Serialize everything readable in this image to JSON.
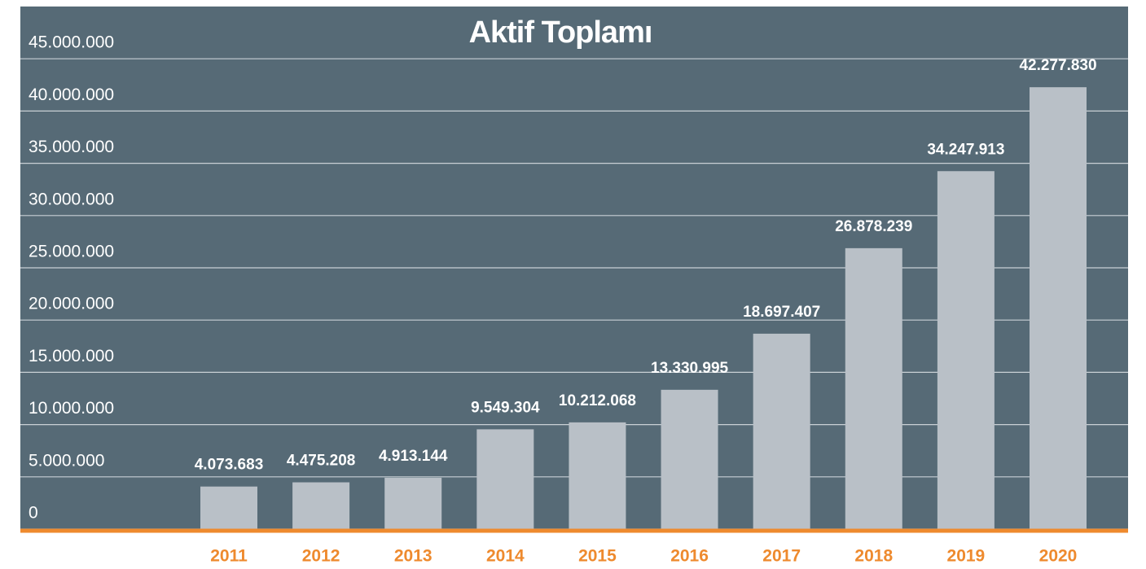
{
  "chart_data": {
    "type": "bar",
    "title": "Aktif Toplamı",
    "categories": [
      "2011",
      "2012",
      "2013",
      "2014",
      "2015",
      "2016",
      "2017",
      "2018",
      "2019",
      "2020"
    ],
    "values": [
      4073683,
      4475208,
      4913144,
      9549304,
      10212068,
      13330995,
      18697407,
      26878239,
      34247913,
      42277830
    ],
    "value_labels": [
      "4.073.683",
      "4.475.208",
      "4.913.144",
      "9.549.304",
      "10.212.068",
      "13.330.995",
      "18.697.407",
      "26.878.239",
      "34.247.913",
      "42.277.830"
    ],
    "color": "#b9c0c7",
    "ylim": [
      0,
      50000000
    ],
    "yticks": [
      0,
      {
        "value": 5000000,
        "label": "5.000.000"
      },
      {
        "value": 10000000,
        "label": "10.000.000"
      },
      {
        "value": 15000000,
        "label": "15.000.000"
      },
      {
        "value": 20000000,
        "label": "20.000.000"
      },
      {
        "value": 25000000,
        "label": "25.000.000"
      },
      {
        "value": 30000000,
        "label": "30.000.000"
      },
      {
        "value": 35000000,
        "label": "35.000.000"
      },
      {
        "value": 40000000,
        "label": "40.000.000"
      },
      {
        "value": 45000000,
        "label": "45.000.000"
      }
    ],
    "grid": true
  }
}
